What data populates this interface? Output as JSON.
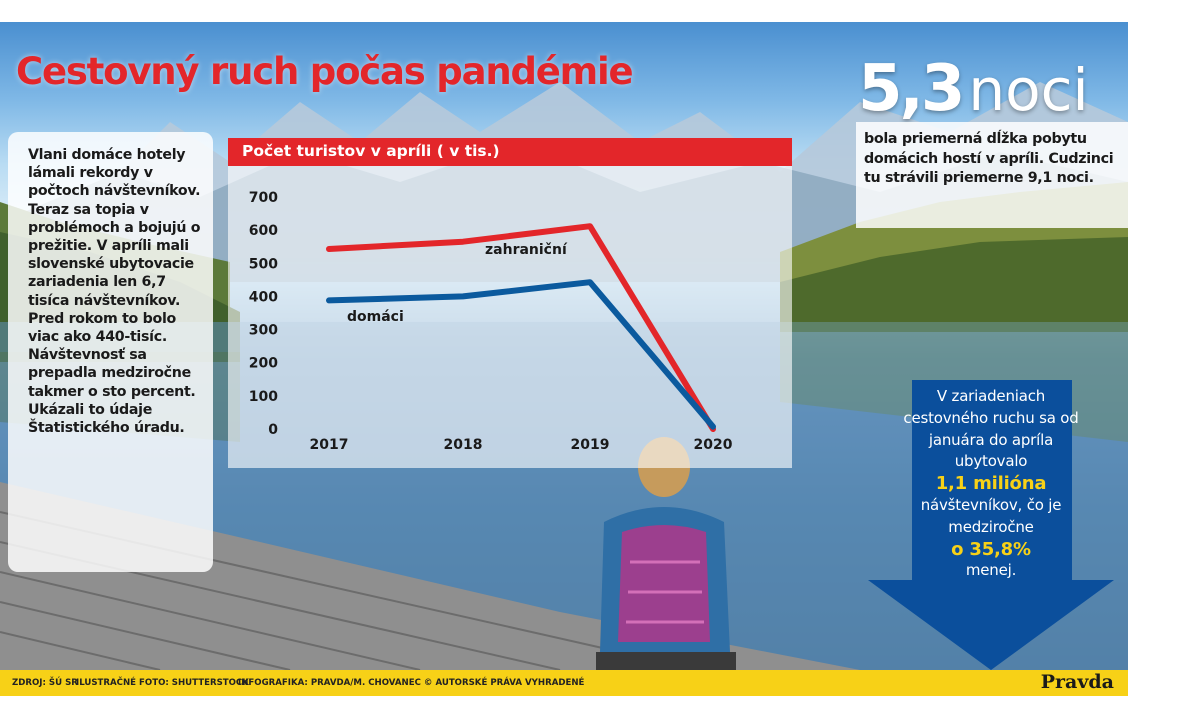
{
  "headline": "Cestovný ruch počas pandémie",
  "left_text": "Vlani domáce hotely lámali rekordy v počtoch návštevníkov. Teraz sa topia v problémoch a bojujú o prežitie. V apríli mali slovenské ubytovacie zariadenia len 6,7 tisíca návštevníkov. Pred rokom to bolo viac ako 440-tisíc. Návštevnosť sa prepadla medziročne takmer o sto percent. Ukázali to údaje Štatistického úradu.",
  "stat": {
    "number": "5,3",
    "unit": "noci",
    "text": "bola priemerná dĺžka pobytu domácich hostí v apríli. Cudzinci tu strávili priemerne 9,1 noci."
  },
  "arrow": {
    "line1": "V zariadeniach cestovného ruchu sa od januára do apríla ubytovalo",
    "highlight1": "1,1 milióna",
    "line2": "návštevníkov, čo je medziročne",
    "highlight2": "o 35,8%",
    "line3": "menej.",
    "color": "#0b4f9c",
    "highlight_color": "#f7d117"
  },
  "chart_data": {
    "type": "line",
    "title": "Počet turistov v apríli ( v tis.)",
    "categories": [
      "2017",
      "2018",
      "2019",
      "2020"
    ],
    "yticks": [
      "0",
      "100",
      "200",
      "300",
      "400",
      "500",
      "600",
      "700"
    ],
    "ylim": [
      0,
      700
    ],
    "grid": false,
    "series": [
      {
        "name": "zahraniční",
        "values": [
          543,
          565,
          612,
          0
        ],
        "color": "#e3262a"
      },
      {
        "name": "domáci",
        "values": [
          388,
          400,
          443,
          7
        ],
        "color": "#0b5a9e"
      }
    ]
  },
  "footer": {
    "source": "ZDROJ: ŠÚ SR",
    "photo": "ILUSTRAČNÉ FOTO: SHUTTERSTOCK",
    "credit": "INFOGRAFIKA: PRAVDA/M. CHOVANEC © AUTORSKÉ PRÁVA VYHRADENÉ",
    "logo": "Pravda"
  },
  "colors": {
    "red": "#e3262a",
    "yellow": "#f7d117",
    "blue": "#0b4f9c"
  }
}
